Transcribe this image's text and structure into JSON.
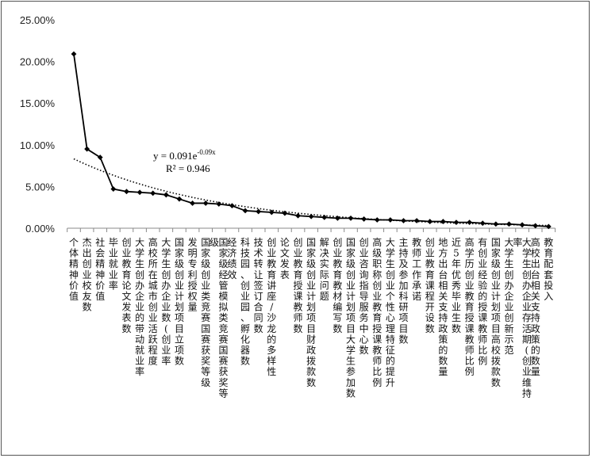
{
  "chart_data": {
    "type": "line",
    "categories": [
      "个体精神价值",
      "杰出创业校友数",
      "社会精神价值",
      "毕业就业率",
      "创业教育论文发表数",
      "大学生创办企业的带动就业率",
      "高校所在城市创业活跃程度",
      "大学生创办企业数(创业率",
      "国家级创业计划项目立项数",
      "发明专利授权量",
      "国家级创业类竞赛国赛获奖等级",
      "国家级经管模拟类竞赛国赛获奖等级",
      "经济绩效",
      "科技园、创业园、孵化器数",
      "技术转让签订合同数",
      "创业教育讲座/沙龙的多样性",
      "论文发表",
      "创业教育授课教师数",
      "国家级创业计划项目财政拨款数",
      "解决实际问题",
      "创业教育教材编写数",
      "国家级创业计划项目大学生参加数",
      "创业咨询指导服务中心数",
      "高级职称创业教育授课教师比例",
      "大学生创业个性心理特征的提升",
      "主持及参加科研项目数",
      "教师工作承诺",
      "创业教育课程开设数",
      "地方出台相关支持政策的数量",
      "近5年优秀毕业生数",
      "高学历创业教育授课教师比例",
      "有创业经验的授课教师比例",
      "国家级创业计划项目高校拨款数",
      "大学生创办企业创新示范",
      "大学生创办企业存活期(创业维持率",
      "高校出台相关支持政策的数量",
      "教育配套投入"
    ],
    "series": [
      {
        "values": [
          20.9,
          9.5,
          8.5,
          4.7,
          4.4,
          4.3,
          4.2,
          4.0,
          3.5,
          3.0,
          3.0,
          2.9,
          2.7,
          2.1,
          2.0,
          1.9,
          1.8,
          1.5,
          1.4,
          1.3,
          1.2,
          1.2,
          1.1,
          1.0,
          1.0,
          0.9,
          0.9,
          0.8,
          0.8,
          0.7,
          0.7,
          0.6,
          0.5,
          0.5,
          0.4,
          0.3,
          0.2
        ]
      }
    ],
    "trendline": {
      "type": "exponential",
      "a": 0.091,
      "b": -0.09,
      "style": "dotted"
    },
    "equation_text": {
      "main": "y = 0.091e",
      "exponent": "-0.09x"
    },
    "r2_text": "R² = 0.946",
    "yticks": [
      "0.00%",
      "5.00%",
      "10.00%",
      "15.00%",
      "20.00%",
      "25.00%"
    ],
    "ylim": [
      0,
      25
    ],
    "ytick_step": 5,
    "grid": false,
    "legend": "none",
    "marker": "diamond",
    "line_color": "#000000"
  }
}
